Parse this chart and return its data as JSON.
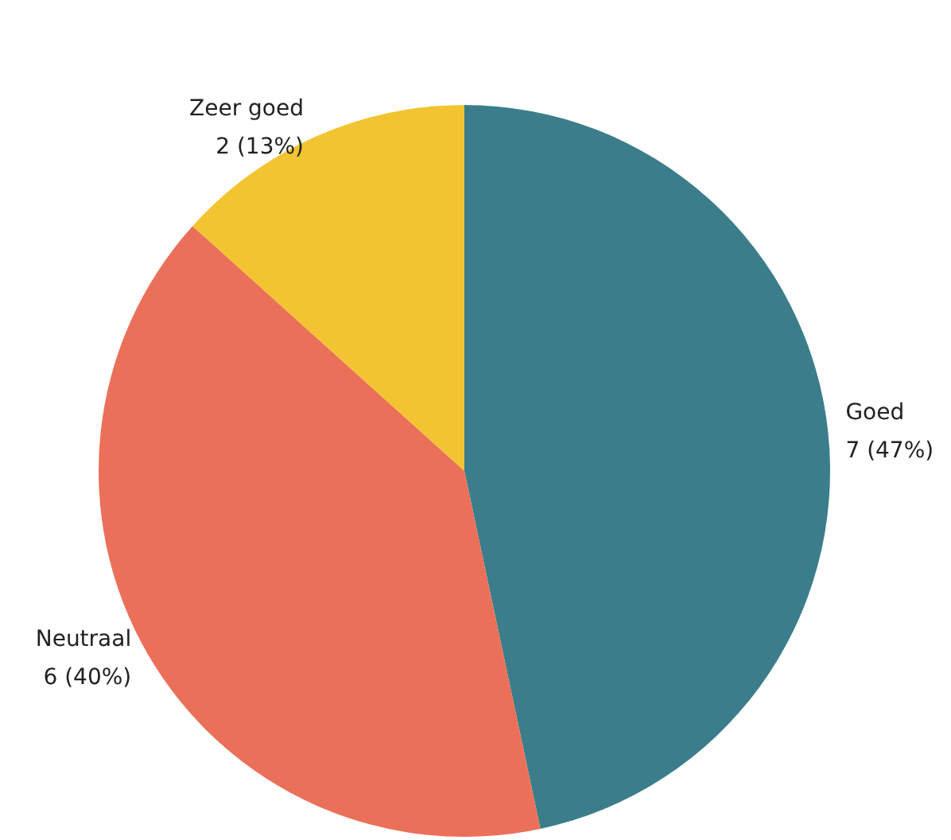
{
  "chart_data": {
    "type": "pie",
    "categories": [
      "Goed",
      "Neutraal",
      "Zeer goed"
    ],
    "values": [
      7,
      6,
      2
    ],
    "colors": [
      "#3b7d8b",
      "#eb7059",
      "#f3c431"
    ],
    "value_labels": [
      "7 (47%)",
      "6 (40%)",
      "2 (13%)"
    ],
    "legend": false
  }
}
